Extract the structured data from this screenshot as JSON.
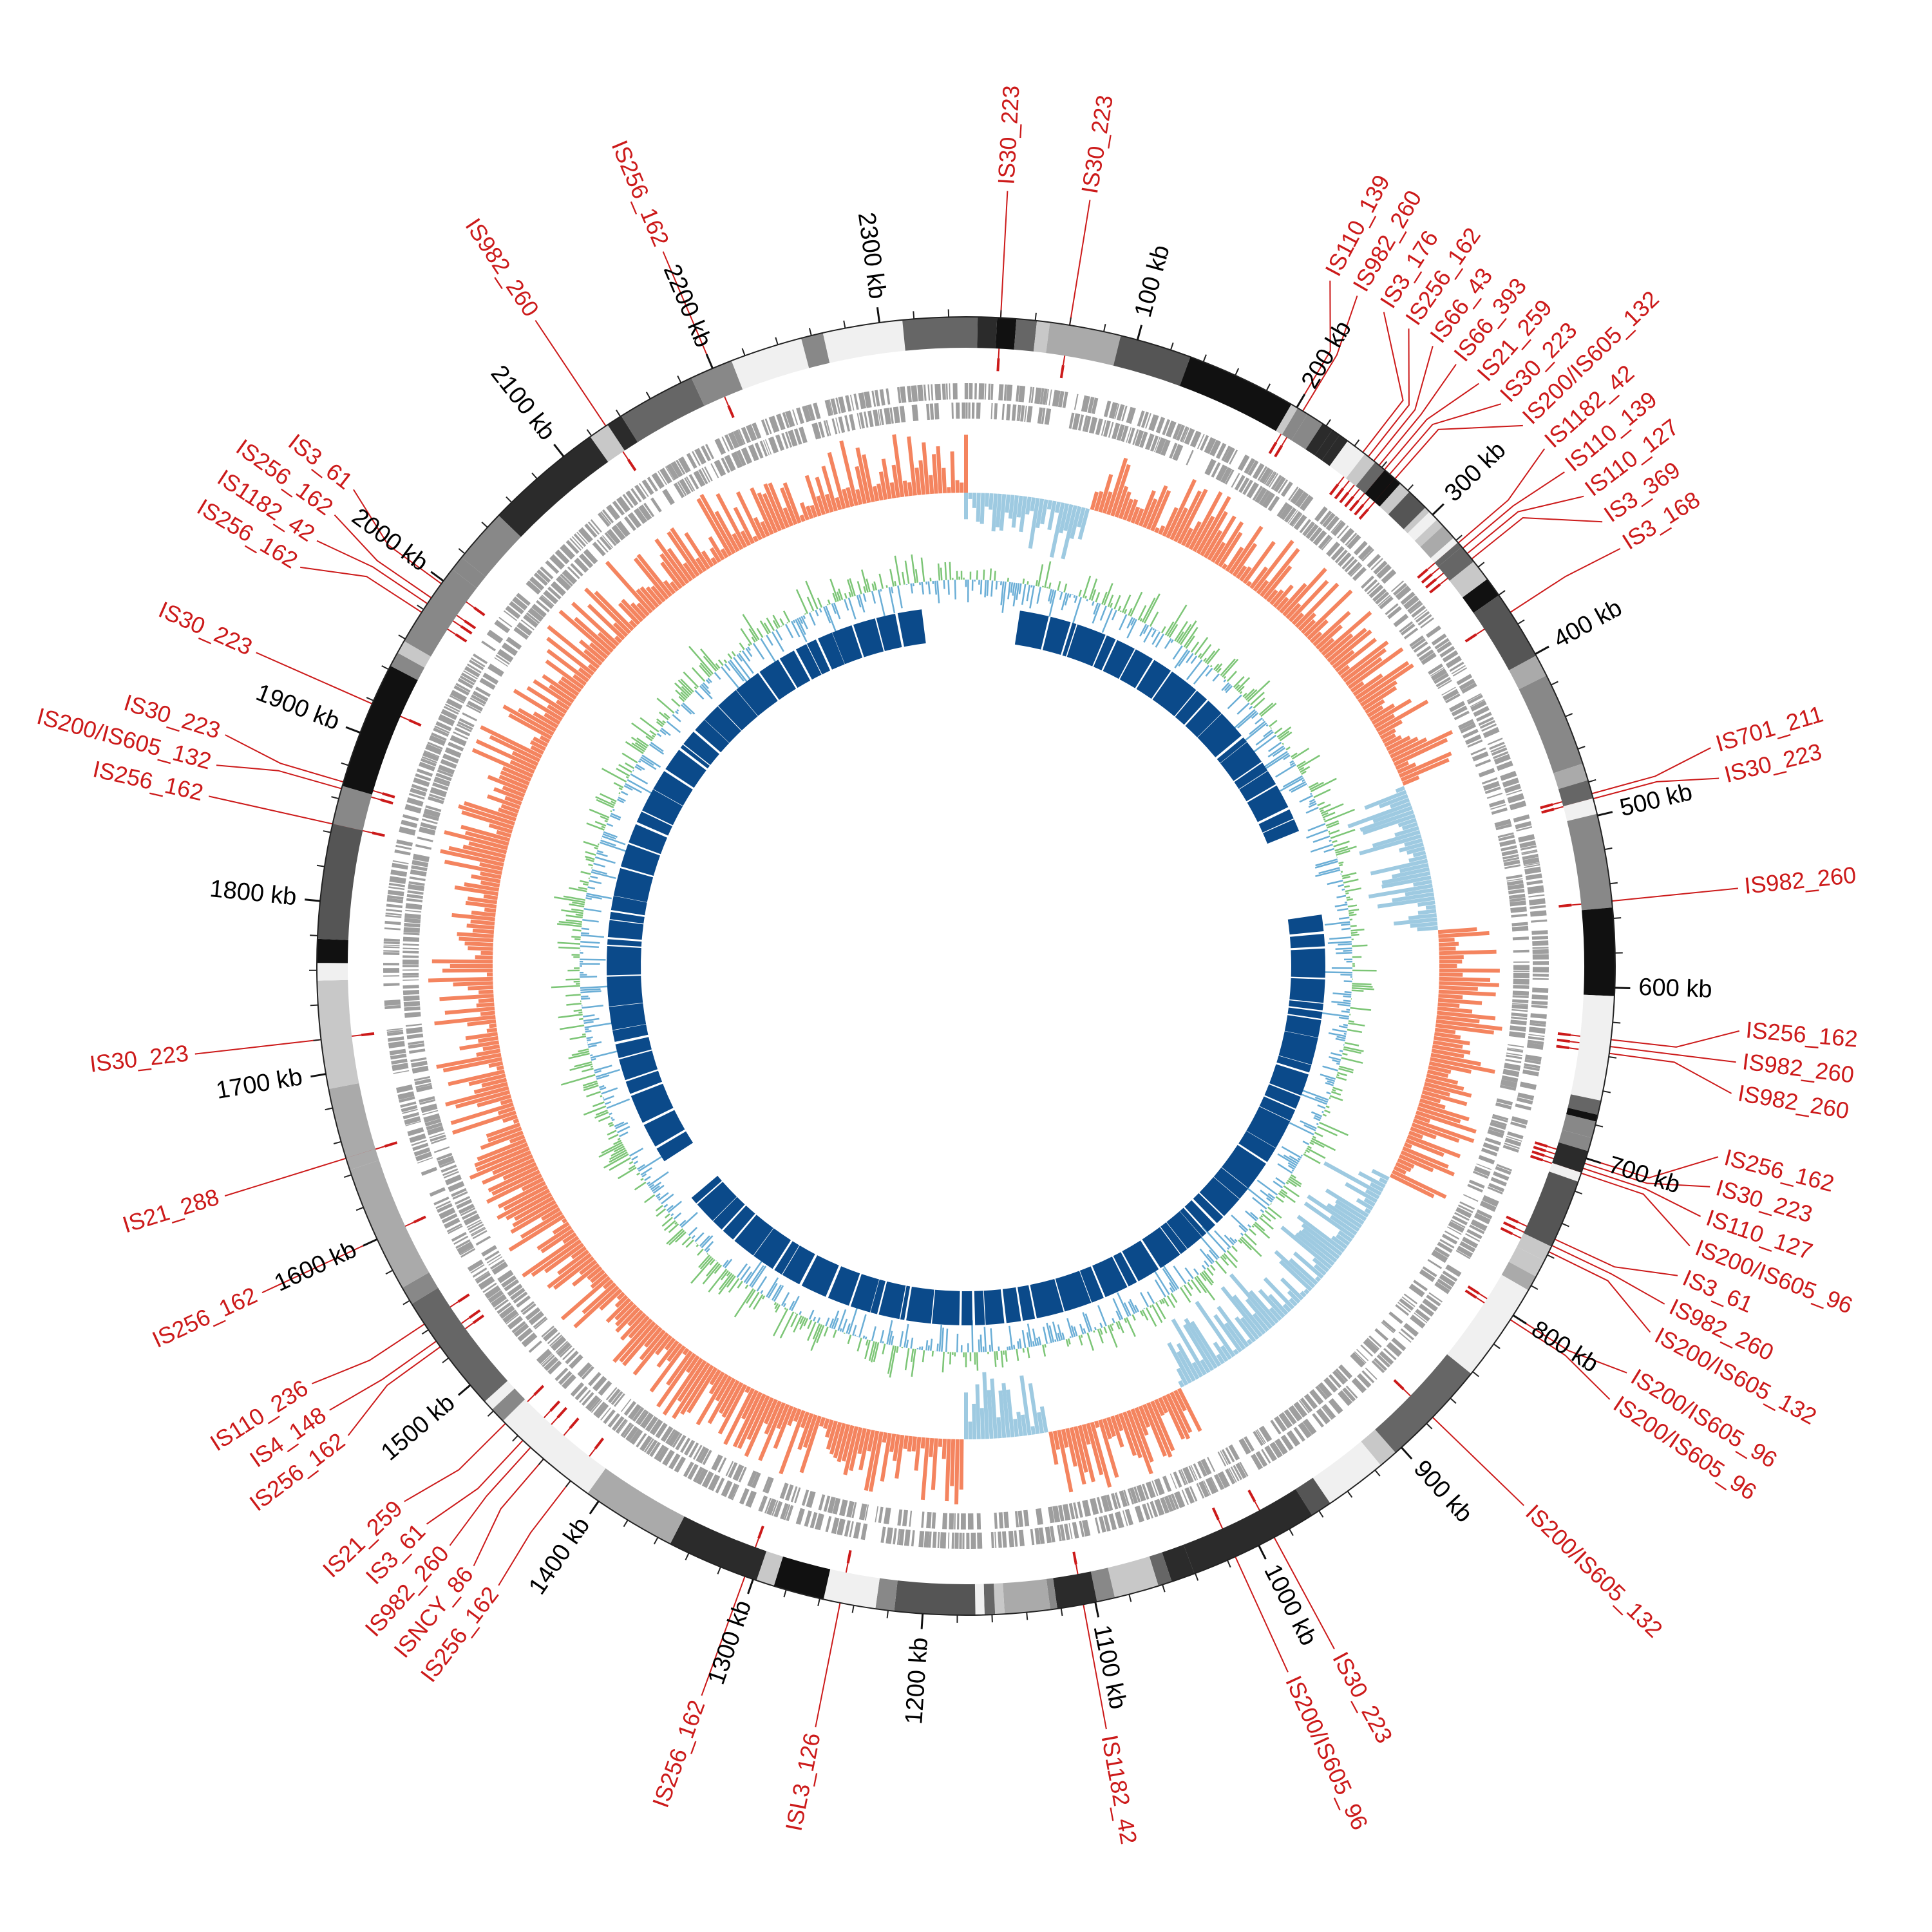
{
  "map": {
    "genome_length_kb": 2350,
    "colors": {
      "is_label": "#cc1a1a",
      "gc_skew_positive": "#f4845f",
      "gc_skew_negative": "#9ecae1",
      "gc_content_above": "#7cc576",
      "gc_content_below": "#6aaed6",
      "cds": "#9e9e9e",
      "inner_blocks": "#0b4a8a"
    },
    "scale_ticks": [
      {
        "kb": 100,
        "label": "100 kb"
      },
      {
        "kb": 200,
        "label": "200 kb"
      },
      {
        "kb": 300,
        "label": "300 kb"
      },
      {
        "kb": 400,
        "label": "400 kb"
      },
      {
        "kb": 500,
        "label": "500 kb"
      },
      {
        "kb": 600,
        "label": "600 kb"
      },
      {
        "kb": 700,
        "label": "700 kb"
      },
      {
        "kb": 800,
        "label": "800 kb"
      },
      {
        "kb": 900,
        "label": "900 kb"
      },
      {
        "kb": 1000,
        "label": "1000 kb"
      },
      {
        "kb": 1100,
        "label": "1100 kb"
      },
      {
        "kb": 1200,
        "label": "1200 kb"
      },
      {
        "kb": 1300,
        "label": "1300 kb"
      },
      {
        "kb": 1400,
        "label": "1400 kb"
      },
      {
        "kb": 1500,
        "label": "1500 kb"
      },
      {
        "kb": 1600,
        "label": "1600 kb"
      },
      {
        "kb": 1700,
        "label": "1700 kb"
      },
      {
        "kb": 1800,
        "label": "1800 kb"
      },
      {
        "kb": 1900,
        "label": "1900 kb"
      },
      {
        "kb": 2000,
        "label": "2000 kb"
      },
      {
        "kb": 2100,
        "label": "2100 kb"
      },
      {
        "kb": 2200,
        "label": "2200 kb"
      },
      {
        "kb": 2300,
        "label": "2300 kb"
      }
    ],
    "is_elements": [
      {
        "kb": 20,
        "label": "IS30_223"
      },
      {
        "kb": 60,
        "label": "IS30_223"
      },
      {
        "kb": 200,
        "label": "IS110_139"
      },
      {
        "kb": 204,
        "label": "IS982_260"
      },
      {
        "kb": 246,
        "label": "IS3_176"
      },
      {
        "kb": 250,
        "label": "IS256_162"
      },
      {
        "kb": 254,
        "label": "IS66_43"
      },
      {
        "kb": 258,
        "label": "IS66_393"
      },
      {
        "kb": 262,
        "label": "IS21_259"
      },
      {
        "kb": 266,
        "label": "IS30_223"
      },
      {
        "kb": 270,
        "label": "IS200/IS605_132"
      },
      {
        "kb": 322,
        "label": "IS1182_42"
      },
      {
        "kb": 326,
        "label": "IS110_139"
      },
      {
        "kb": 330,
        "label": "IS110_127"
      },
      {
        "kb": 334,
        "label": "IS3_369"
      },
      {
        "kb": 372,
        "label": "IS3_168"
      },
      {
        "kb": 487,
        "label": "IS701_211"
      },
      {
        "kb": 490,
        "label": "IS30_223"
      },
      {
        "kb": 550,
        "label": "IS982_260"
      },
      {
        "kb": 630,
        "label": "IS256_162"
      },
      {
        "kb": 634,
        "label": "IS982_260"
      },
      {
        "kb": 638,
        "label": "IS982_260"
      },
      {
        "kb": 700,
        "label": "IS256_162"
      },
      {
        "kb": 703,
        "label": "IS30_223"
      },
      {
        "kb": 706,
        "label": "IS110_127"
      },
      {
        "kb": 709,
        "label": "IS200/IS605_96"
      },
      {
        "kb": 750,
        "label": "IS3_61"
      },
      {
        "kb": 754,
        "label": "IS982_260"
      },
      {
        "kb": 758,
        "label": "IS200/IS605_132"
      },
      {
        "kb": 800,
        "label": "IS200/IS605_96"
      },
      {
        "kb": 803,
        "label": "IS200/IS605_96"
      },
      {
        "kb": 875,
        "label": "IS200/IS605_132"
      },
      {
        "kb": 990,
        "label": "IS30_223"
      },
      {
        "kb": 1015,
        "label": "IS200/IS605_96"
      },
      {
        "kb": 1107,
        "label": "IS1182_42"
      },
      {
        "kb": 1248,
        "label": "ISL3_126"
      },
      {
        "kb": 1305,
        "label": "IS256_162"
      },
      {
        "kb": 1420,
        "label": "IS256_162"
      },
      {
        "kb": 1440,
        "label": "ISNCY_86"
      },
      {
        "kb": 1450,
        "label": "IS982_260"
      },
      {
        "kb": 1456,
        "label": "IS3_61"
      },
      {
        "kb": 1470,
        "label": "IS21_259"
      },
      {
        "kb": 1528,
        "label": "IS256_162"
      },
      {
        "kb": 1532,
        "label": "IS4_148"
      },
      {
        "kb": 1544,
        "label": "IS110_236"
      },
      {
        "kb": 1600,
        "label": "IS256_162"
      },
      {
        "kb": 1650,
        "label": "IS21_288"
      },
      {
        "kb": 1720,
        "label": "IS30_223"
      },
      {
        "kb": 1845,
        "label": "IS256_162"
      },
      {
        "kb": 1866,
        "label": "IS200/IS605_132"
      },
      {
        "kb": 1870,
        "label": "IS30_223"
      },
      {
        "kb": 1918,
        "label": "IS30_223"
      },
      {
        "kb": 1978,
        "label": "IS256_162"
      },
      {
        "kb": 1984,
        "label": "IS1182_42"
      },
      {
        "kb": 1988,
        "label": "IS256_162"
      },
      {
        "kb": 1998,
        "label": "IS3_61"
      },
      {
        "kb": 2130,
        "label": "IS982_260"
      },
      {
        "kb": 2200,
        "label": "IS256_162"
      }
    ]
  }
}
